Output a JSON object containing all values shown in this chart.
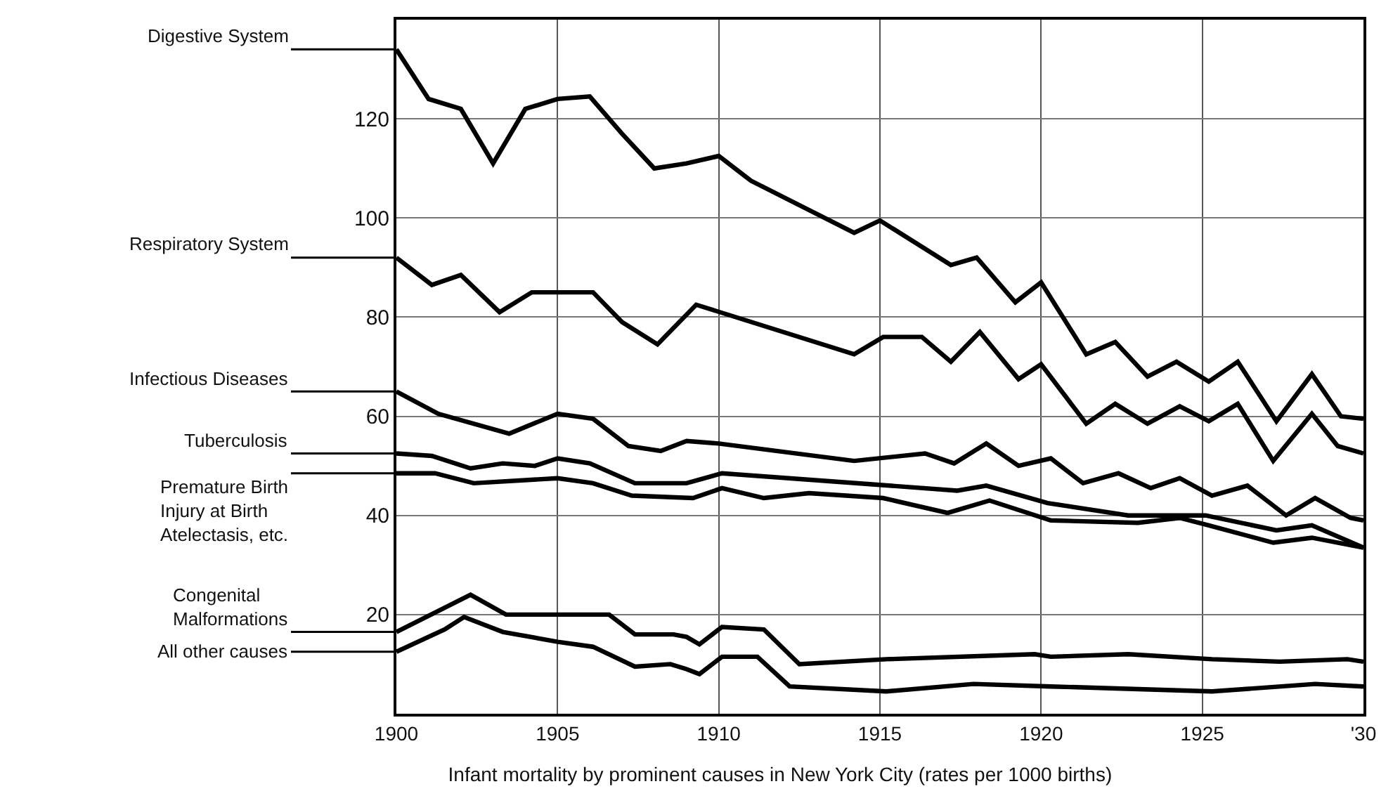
{
  "chart_data": {
    "type": "line",
    "title": "Infant mortality by prominent causes in New York City (rates per 1000 births)",
    "xlim": [
      1900,
      1930
    ],
    "xticks": [
      1900,
      1905,
      1910,
      1915,
      1920,
      1925,
      {
        "value": 1930,
        "label": "'30"
      }
    ],
    "ylim": [
      0,
      140
    ],
    "yticks": [
      {
        "value": 0,
        "label": null
      },
      20,
      40,
      60,
      80,
      100,
      120,
      {
        "value": 140,
        "label": null
      }
    ],
    "grid": true,
    "legend": false,
    "marker": "none",
    "line_style": "solid",
    "series": [
      {
        "name": "Digestive System",
        "color": "#000000",
        "x": [
          1900,
          1901,
          1902,
          1903,
          1904,
          1905,
          1906,
          1907,
          1908,
          1909,
          1910,
          1911,
          1914.2,
          1915,
          1917.2,
          1918,
          1919.2,
          1920,
          1921.4,
          1922.3,
          1923.3,
          1924.2,
          1925.2,
          1926.1,
          1927.3,
          1928.4,
          1929.3,
          1930
        ],
        "values": [
          134,
          124,
          122,
          111,
          122,
          124,
          124.5,
          117,
          110,
          111,
          112.5,
          107.5,
          97,
          99.5,
          90.5,
          92,
          83,
          87,
          72.5,
          75,
          68,
          71,
          67,
          71,
          59,
          68.5,
          60,
          59.5
        ]
      },
      {
        "name": "Respiratory System",
        "color": "#000000",
        "x": [
          1900,
          1901.1,
          1902,
          1903.2,
          1904.2,
          1906.1,
          1907,
          1908.1,
          1909.3,
          1914.2,
          1915.1,
          1916.3,
          1917.2,
          1918.1,
          1919.3,
          1920,
          1921.4,
          1922.3,
          1923.3,
          1924.3,
          1925.2,
          1926.1,
          1927.2,
          1928.4,
          1929.2,
          1930
        ],
        "values": [
          92,
          86.5,
          88.5,
          81,
          85,
          85,
          79,
          74.5,
          82.5,
          72.5,
          76,
          76,
          71,
          77,
          67.5,
          70.5,
          58.5,
          62.5,
          58.5,
          62,
          59,
          62.5,
          51,
          60.5,
          54,
          52.5
        ]
      },
      {
        "name": "Infectious Diseases",
        "color": "#000000",
        "x": [
          1900,
          1901.3,
          1903.5,
          1905,
          1906.1,
          1907.2,
          1908.2,
          1909,
          1910,
          1914.2,
          1916.4,
          1917.3,
          1918.3,
          1919.3,
          1920.3,
          1921.3,
          1922.4,
          1923.4,
          1924.3,
          1925.3,
          1926.4,
          1927.6,
          1928.5,
          1929.6,
          1930
        ],
        "values": [
          65,
          60.5,
          56.5,
          60.5,
          59.5,
          54,
          53,
          55,
          54.5,
          51,
          52.5,
          50.5,
          54.5,
          50,
          51.5,
          46.5,
          48.5,
          45.5,
          47.5,
          44,
          46,
          40,
          43.5,
          39.5,
          39
        ]
      },
      {
        "name": "Tuberculosis",
        "color": "#000000",
        "x": [
          1900,
          1901.1,
          1902.3,
          1903.3,
          1904.3,
          1905,
          1906,
          1907.4,
          1909,
          1910.1,
          1917.4,
          1918.3,
          1920.2,
          1922.7,
          1925.1,
          1927.3,
          1928.4,
          1930
        ],
        "values": [
          52.5,
          52,
          49.5,
          50.5,
          50,
          51.5,
          50.5,
          46.5,
          46.5,
          48.5,
          45,
          46,
          42.5,
          40,
          40,
          37,
          38,
          33.5
        ]
      },
      {
        "name": "Premature Birth\nInjury at Birth\nAtelectasis, etc.",
        "color": "#000000",
        "x": [
          1900,
          1901.2,
          1902.4,
          1905,
          1906.1,
          1907.3,
          1909.2,
          1910.1,
          1911.4,
          1912.8,
          1915.1,
          1917.1,
          1918.4,
          1920.3,
          1923,
          1924.3,
          1925.2,
          1927.2,
          1928.4,
          1930
        ],
        "values": [
          48.5,
          48.5,
          46.5,
          47.5,
          46.5,
          44,
          43.5,
          45.5,
          43.5,
          44.5,
          43.5,
          40.5,
          43,
          39,
          38.5,
          39.5,
          38,
          34.5,
          35.5,
          33.5
        ]
      },
      {
        "name": "Congenital\nMalformations",
        "color": "#000000",
        "x": [
          1900,
          1902.3,
          1903.4,
          1905,
          1906.6,
          1907.4,
          1908.6,
          1909,
          1909.4,
          1910.1,
          1911.4,
          1912.5,
          1915.2,
          1919.8,
          1920.3,
          1922.7,
          1925.3,
          1927.4,
          1929.5,
          1930
        ],
        "values": [
          16.5,
          24,
          20,
          20,
          20,
          16,
          16,
          15.5,
          14,
          17.5,
          17,
          10,
          11,
          12,
          11.5,
          12,
          11,
          10.5,
          11,
          10.5
        ]
      },
      {
        "name": "All other causes",
        "color": "#000000",
        "x": [
          1900,
          1901.5,
          1902.1,
          1903.3,
          1905,
          1906.1,
          1907.4,
          1908.5,
          1909,
          1909.4,
          1910.1,
          1911.2,
          1912.2,
          1915.2,
          1917.9,
          1920.3,
          1925.3,
          1928.5,
          1930
        ],
        "values": [
          12.5,
          17,
          19.5,
          16.5,
          14.5,
          13.5,
          9.5,
          10,
          9,
          8,
          11.5,
          11.5,
          5.5,
          4.5,
          6,
          5.5,
          4.5,
          6,
          5.5
        ]
      }
    ]
  }
}
